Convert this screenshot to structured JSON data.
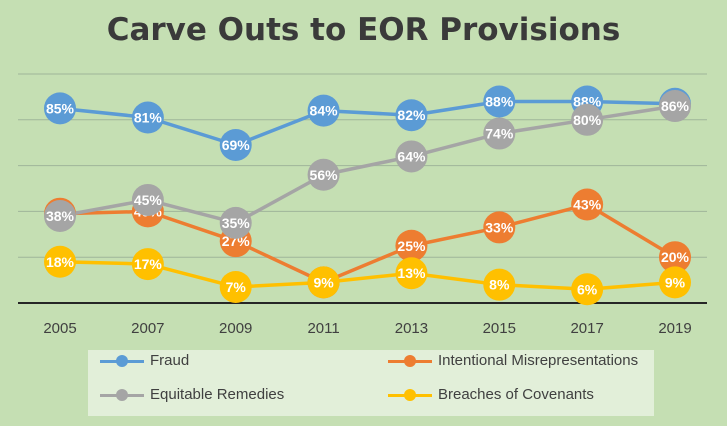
{
  "chart_data": {
    "type": "line",
    "title": "Carve Outs to EOR Provisions",
    "xlabel": "",
    "ylabel": "",
    "categories": [
      "2005",
      "2007",
      "2009",
      "2011",
      "2013",
      "2015",
      "2017",
      "2019"
    ],
    "ylim": [
      0,
      100
    ],
    "grid": true,
    "legend_placement": "bottom",
    "series": [
      {
        "name": "Fraud",
        "color": "#5b9bd5",
        "values": [
          85,
          81,
          69,
          84,
          82,
          88,
          88,
          87
        ],
        "labels": [
          "85%",
          "81%",
          "69%",
          "84%",
          "82%",
          "88%",
          "88%",
          "87%"
        ]
      },
      {
        "name": "Intentional Misrepresentations",
        "color": "#ed7d31",
        "values": [
          39,
          40,
          27,
          9,
          25,
          33,
          43,
          20
        ],
        "labels": [
          "39%",
          "40%",
          "27%",
          "9%",
          "25%",
          "33%",
          "43%",
          "20%"
        ]
      },
      {
        "name": "Equitable Remedies",
        "color": "#a5a5a5",
        "values": [
          38,
          45,
          35,
          56,
          64,
          74,
          80,
          86
        ],
        "labels": [
          "38%",
          "45%",
          "35%",
          "56%",
          "64%",
          "74%",
          "80%",
          "86%"
        ]
      },
      {
        "name": "Breaches of Covenants",
        "color": "#ffc000",
        "values": [
          18,
          17,
          7,
          9,
          13,
          8,
          6,
          9
        ],
        "labels": [
          "18%",
          "17%",
          "7%",
          "9%",
          "13%",
          "8%",
          "6%",
          "9%"
        ]
      }
    ]
  }
}
